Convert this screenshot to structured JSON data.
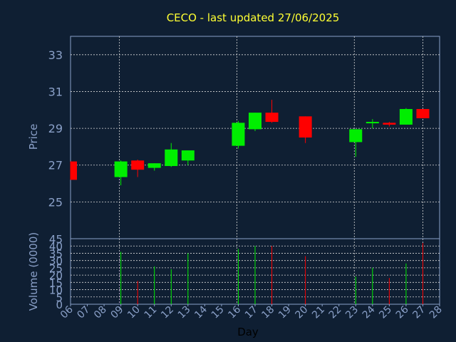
{
  "chart_data": {
    "type": "candlestick",
    "title": "CECO - last updated 27/06/2025",
    "price_panel": {
      "ylabel": "Price",
      "ylim": [
        23.0,
        34.0
      ],
      "yticks": [
        25,
        27,
        29,
        31,
        33
      ]
    },
    "volume_panel": {
      "ylabel": "Volume (0000)",
      "ylim": [
        0,
        45
      ],
      "yticks": [
        0,
        5,
        10,
        15,
        20,
        25,
        30,
        35,
        40,
        45
      ]
    },
    "xlabel": "Day",
    "x_range": [
      6,
      28
    ],
    "x_ticks": [
      "06",
      "07",
      "08",
      "09",
      "10",
      "11",
      "12",
      "13",
      "14",
      "15",
      "16",
      "17",
      "18",
      "19",
      "20",
      "21",
      "22",
      "23",
      "24",
      "25",
      "26",
      "27",
      "28"
    ],
    "candles": [
      {
        "day": 6,
        "open": 27.2,
        "high": 27.2,
        "low": 26.2,
        "close": 26.2,
        "volume": 0
      },
      {
        "day": 9,
        "open": 26.35,
        "high": 27.25,
        "low": 25.9,
        "close": 27.2,
        "volume": 36
      },
      {
        "day": 10,
        "open": 27.25,
        "high": 27.3,
        "low": 26.35,
        "close": 26.75,
        "volume": 16
      },
      {
        "day": 11,
        "open": 26.85,
        "high": 27.1,
        "low": 26.7,
        "close": 27.1,
        "volume": 26
      },
      {
        "day": 12,
        "open": 26.95,
        "high": 28.2,
        "low": 26.9,
        "close": 27.85,
        "volume": 24
      },
      {
        "day": 13,
        "open": 27.25,
        "high": 27.8,
        "low": 27.0,
        "close": 27.8,
        "volume": 35
      },
      {
        "day": 16,
        "open": 28.05,
        "high": 29.4,
        "low": 27.9,
        "close": 29.3,
        "volume": 38
      },
      {
        "day": 17,
        "open": 28.95,
        "high": 29.85,
        "low": 28.85,
        "close": 29.85,
        "volume": 40
      },
      {
        "day": 18,
        "open": 29.85,
        "high": 30.55,
        "low": 29.3,
        "close": 29.35,
        "volume": 40
      },
      {
        "day": 20,
        "open": 29.65,
        "high": 29.65,
        "low": 28.2,
        "close": 28.5,
        "volume": 33
      },
      {
        "day": 23,
        "open": 28.25,
        "high": 28.95,
        "low": 27.45,
        "close": 28.95,
        "volume": 19
      },
      {
        "day": 24,
        "open": 29.3,
        "high": 29.5,
        "low": 29.0,
        "close": 29.35,
        "volume": 25
      },
      {
        "day": 25,
        "open": 29.3,
        "high": 29.35,
        "low": 29.1,
        "close": 29.2,
        "volume": 18
      },
      {
        "day": 26,
        "open": 29.2,
        "high": 30.1,
        "low": 29.2,
        "close": 30.05,
        "volume": 28
      },
      {
        "day": 27,
        "open": 30.05,
        "high": 30.05,
        "low": 29.55,
        "close": 29.55,
        "volume": 42
      }
    ],
    "colors": {
      "up": "#00ee00",
      "down": "#ff0000",
      "title": "#ffff33",
      "axis_text": "#8aa0c8",
      "grid": "#d8d8d8",
      "background": "#0f1f33",
      "frame": "#8aa0c8"
    },
    "grid": true
  }
}
